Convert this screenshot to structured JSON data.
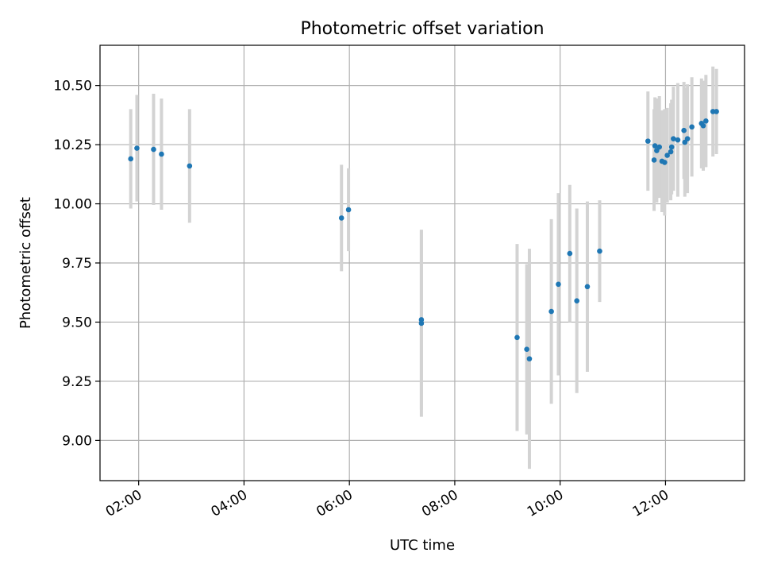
{
  "chart_data": {
    "type": "scatter",
    "title": "Photometric offset variation",
    "xlabel": "UTC time",
    "ylabel": "Photometric offset",
    "x_ticks": [
      "02:00",
      "04:00",
      "06:00",
      "08:00",
      "10:00",
      "12:00"
    ],
    "y_ticks": [
      "9.00",
      "9.25",
      "9.50",
      "9.75",
      "10.00",
      "10.25",
      "10.50"
    ],
    "xlim": [
      "01:16",
      "13:30"
    ],
    "ylim": [
      8.83,
      10.67
    ],
    "grid": true,
    "colors": {
      "points": "#1f77b4",
      "errorbars": "#d3d3d3",
      "grid": "#b0b0b0"
    },
    "series": [
      {
        "points": [
          {
            "t": "01:51",
            "y": 10.19,
            "err": 0.21
          },
          {
            "t": "01:58",
            "y": 10.235,
            "err": 0.225
          },
          {
            "t": "02:17",
            "y": 10.23,
            "err": 0.235
          },
          {
            "t": "02:26",
            "y": 10.21,
            "err": 0.235
          },
          {
            "t": "02:58",
            "y": 10.16,
            "err": 0.24
          },
          {
            "t": "05:51",
            "y": 9.94,
            "err": 0.225
          },
          {
            "t": "05:59",
            "y": 9.975,
            "err": 0.175
          },
          {
            "t": "07:22",
            "y": 9.51,
            "err": 0.38
          },
          {
            "t": "07:22",
            "y": 9.495,
            "err": 0.395
          },
          {
            "t": "09:11",
            "y": 9.435,
            "err": 0.395
          },
          {
            "t": "09:22",
            "y": 9.385,
            "err": 0.36
          },
          {
            "t": "09:25",
            "y": 9.345,
            "err": 0.465
          },
          {
            "t": "09:50",
            "y": 9.545,
            "err": 0.39
          },
          {
            "t": "09:58",
            "y": 9.66,
            "err": 0.385
          },
          {
            "t": "10:11",
            "y": 9.79,
            "err": 0.29
          },
          {
            "t": "10:19",
            "y": 9.59,
            "err": 0.39
          },
          {
            "t": "10:31",
            "y": 9.65,
            "err": 0.36
          },
          {
            "t": "10:45",
            "y": 9.8,
            "err": 0.215
          },
          {
            "t": "11:40",
            "y": 10.265,
            "err": 0.21
          },
          {
            "t": "11:47",
            "y": 10.185,
            "err": 0.215
          },
          {
            "t": "11:48",
            "y": 10.245,
            "err": 0.205
          },
          {
            "t": "11:50",
            "y": 10.225,
            "err": 0.22
          },
          {
            "t": "11:53",
            "y": 10.24,
            "err": 0.215
          },
          {
            "t": "11:56",
            "y": 10.18,
            "err": 0.215
          },
          {
            "t": "11:59",
            "y": 10.175,
            "err": 0.225
          },
          {
            "t": "12:02",
            "y": 10.205,
            "err": 0.2
          },
          {
            "t": "12:06",
            "y": 10.22,
            "err": 0.205
          },
          {
            "t": "12:07",
            "y": 10.24,
            "err": 0.2
          },
          {
            "t": "12:09",
            "y": 10.275,
            "err": 0.22
          },
          {
            "t": "12:14",
            "y": 10.27,
            "err": 0.24
          },
          {
            "t": "12:21",
            "y": 10.31,
            "err": 0.205
          },
          {
            "t": "12:22",
            "y": 10.26,
            "err": 0.23
          },
          {
            "t": "12:25",
            "y": 10.275,
            "err": 0.23
          },
          {
            "t": "12:30",
            "y": 10.325,
            "err": 0.21
          },
          {
            "t": "12:41",
            "y": 10.34,
            "err": 0.19
          },
          {
            "t": "12:43",
            "y": 10.33,
            "err": 0.19
          },
          {
            "t": "12:46",
            "y": 10.35,
            "err": 0.195
          },
          {
            "t": "12:54",
            "y": 10.39,
            "err": 0.19
          },
          {
            "t": "12:58",
            "y": 10.39,
            "err": 0.18
          }
        ]
      }
    ]
  }
}
